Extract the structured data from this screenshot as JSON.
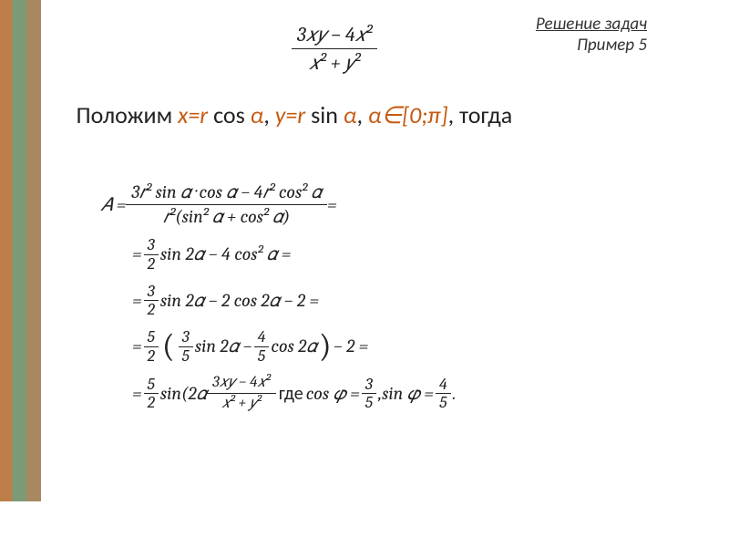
{
  "header": {
    "line1": "Решение задач",
    "line2": "Пример 5"
  },
  "topFraction": {
    "num": "3𝑥𝑦 − 4𝑥²",
    "den": "𝑥² + 𝑦²"
  },
  "bodyText": {
    "prefix": "    Положим ",
    "sub1": "x=r",
    "fn1": " cos ",
    "var1": "α",
    "sep1": ", ",
    "sub2": "y=r",
    "fn2": " sin ",
    "var2": "α",
    "sep2": ", ",
    "range": "α∈[0;π]",
    "suffix": ", тогда"
  },
  "equations": {
    "row1_lhs": "𝐴 = ",
    "row1_num": "3𝑟² sin 𝛼 · cos 𝛼 − 4𝑟² cos² 𝛼",
    "row1_den": "𝑟²(sin² 𝛼 + cos² 𝛼)",
    "row1_eq": " =",
    "row2": "sin 2𝛼 − 4 cos² 𝛼 =",
    "row3": "sin 2𝛼 − 2 cos 2𝛼 − 2 =",
    "row4_mid": " sin 2𝛼 − ",
    "row4_end": " cos 2𝛼",
    "row4_tail": " − 2 =",
    "row5_a": "sin(2𝛼 ",
    "row5_num": "3𝑥𝑦 − 4𝑥²",
    "row5_den": "𝑥² + 𝑦²",
    "row5_gde": "где ",
    "row5_cos": "cos 𝜑 = ",
    "row5_sep": " , ",
    "row5_sin": "sin 𝜑 = ",
    "row5_dot": " .",
    "n3": "3",
    "n2": "2",
    "n5": "5",
    "n4": "4",
    "eq": "= "
  },
  "colors": {
    "accentText": "#c55a11",
    "textColor": "#222222",
    "bar1": "#be7e4a",
    "bar2": "#7a9b76",
    "bar3": "#a88860"
  }
}
